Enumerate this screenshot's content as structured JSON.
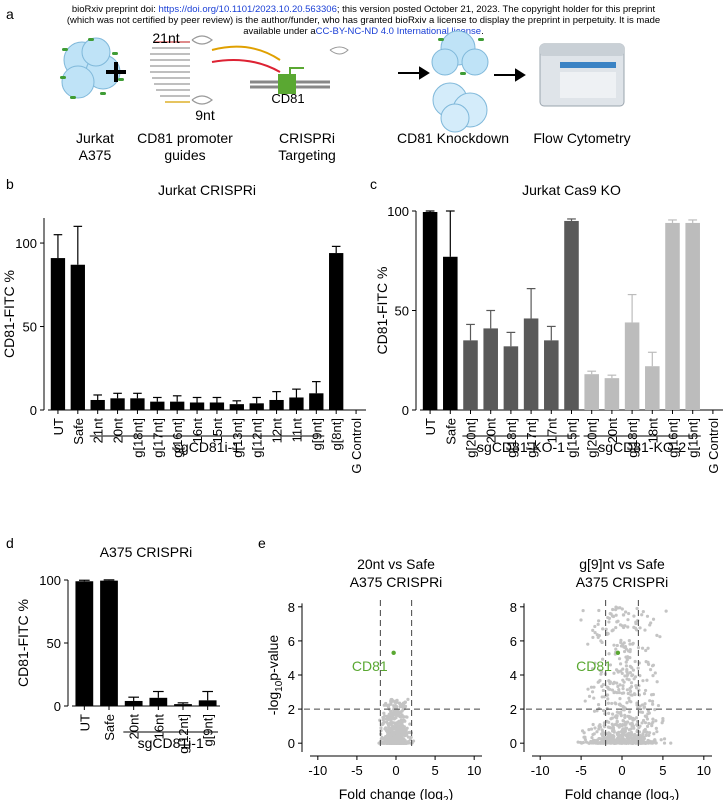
{
  "header": {
    "line1_pre": "bioRxiv preprint doi: ",
    "doi": "https://doi.org/10.1101/2023.10.20.563306",
    "line1_post": "; this version posted October 21, 2023. The copyright holder for this preprint",
    "line2": "(which was not certified by peer review) is the author/funder, who has granted bioRxiv a license to display the preprint in perpetuity. It is made",
    "line3_pre": "available under a",
    "license": "CC-BY-NC-ND 4.0 International license",
    "line3_post": "."
  },
  "panel_labels": {
    "a": "a",
    "b": "b",
    "c": "c",
    "d": "d",
    "e": "e"
  },
  "schematic": {
    "cells_l1": "Jurkat",
    "cells_l2": "A375",
    "nt21": "21nt",
    "nt9": "9nt",
    "guides_l1": "CD81 promoter",
    "guides_l2": "guides",
    "gene": "CD81",
    "crispri_l1": "CRISPRi",
    "crispri_l2": "Targeting",
    "knockdown": "CD81 Knockdown",
    "flow": "Flow Cytometry",
    "plus": "+"
  },
  "chart_data": [
    {
      "id": "b",
      "type": "bar",
      "title": "Jurkat CRISPRi",
      "ylabel": "CD81-FITC %",
      "ylim": [
        0,
        115
      ],
      "yticks": [
        0,
        50,
        100
      ],
      "categories": [
        "UT",
        "Safe",
        "21nt",
        "20nt",
        "g[18nt]",
        "g[17nt]",
        "g[16nt]",
        "16nt",
        "15nt",
        "g[13nt]",
        "g[12nt]",
        "12nt",
        "11nt",
        "g[9nt]",
        "g[8nt]",
        "IgG Control"
      ],
      "values": [
        91,
        87,
        6,
        7,
        7,
        5,
        5,
        4.5,
        4.5,
        3.5,
        4,
        6,
        7.5,
        10,
        94,
        0
      ],
      "errors": [
        14,
        23,
        3,
        3,
        3,
        2.5,
        3.5,
        3,
        3,
        2,
        3.5,
        5,
        5,
        7,
        4,
        0
      ],
      "colors": [
        "#000",
        "#000",
        "#000",
        "#000",
        "#000",
        "#000",
        "#000",
        "#000",
        "#000",
        "#000",
        "#000",
        "#000",
        "#000",
        "#000",
        "#000",
        "#000"
      ],
      "groups": [
        {
          "label": "sgCD81i-1",
          "from": 2,
          "to": 13
        }
      ]
    },
    {
      "id": "c",
      "type": "bar",
      "title": "Jurkat Cas9 KO",
      "ylabel": "CD81-FITC %",
      "ylim": [
        0,
        100
      ],
      "yticks": [
        0,
        50,
        100
      ],
      "categories": [
        "UT",
        "Safe",
        "g[20nt]",
        "20nt",
        "g[18nt]",
        "g[17nt]",
        "17nt",
        "g[15nt]",
        "g[20nt]",
        "20nt",
        "g[18nt]",
        "18nt",
        "g[16nt]",
        "g[15nt]",
        "IgG Control"
      ],
      "values": [
        99.5,
        77,
        35,
        41,
        32,
        46,
        35,
        95,
        18,
        16,
        44,
        22,
        94,
        94,
        0
      ],
      "errors": [
        0.5,
        23,
        8,
        9,
        7,
        15,
        7,
        1,
        1.5,
        1.5,
        14,
        7,
        1.5,
        1.5,
        0
      ],
      "colors": [
        "#000",
        "#000",
        "#595959",
        "#595959",
        "#595959",
        "#595959",
        "#595959",
        "#595959",
        "#bcbcbc",
        "#bcbcbc",
        "#bcbcbc",
        "#bcbcbc",
        "#bcbcbc",
        "#bcbcbc",
        "#000"
      ],
      "groups": [
        {
          "label": "sgCD81-KO-1",
          "from": 2,
          "to": 7
        },
        {
          "label": "sgCD81-KO-2",
          "from": 8,
          "to": 13
        }
      ]
    },
    {
      "id": "d",
      "type": "bar",
      "title": "A375 CRISPRi",
      "ylabel": "CD81-FITC %",
      "ylim": [
        0,
        100
      ],
      "yticks": [
        0,
        50,
        100
      ],
      "categories": [
        "UT",
        "Safe",
        "20nt",
        "16nt",
        "g[12nt]",
        "g[9nt]"
      ],
      "values": [
        99,
        99.5,
        4,
        6.5,
        1.5,
        4.5
      ],
      "errors": [
        0.8,
        0.6,
        3,
        5,
        1,
        7
      ],
      "colors": [
        "#000",
        "#000",
        "#000",
        "#000",
        "#000",
        "#000"
      ],
      "groups": [
        {
          "label": "sgCD81i-1",
          "from": 2,
          "to": 5
        }
      ]
    },
    {
      "id": "e1",
      "type": "scatter",
      "title_l1": "20nt vs Safe",
      "title_l2": "A375 CRISPRi",
      "xlabel": "Fold change (log2)",
      "ylabel": "-log10p-value",
      "xlim": [
        -11,
        11
      ],
      "ylim": [
        -0.4,
        8.4
      ],
      "xticks": [
        -10,
        -5,
        0,
        5,
        10
      ],
      "yticks": [
        0,
        2,
        4,
        6,
        8
      ],
      "thresholds": {
        "x": [
          -2,
          2
        ],
        "y": 2
      },
      "highlight": {
        "label": "CD81",
        "x": -0.3,
        "y": 5.3
      },
      "background_points": "many grey points clustered at low p-value"
    },
    {
      "id": "e2",
      "type": "scatter",
      "title_l1": "g[9]nt vs Safe",
      "title_l2": "A375 CRISPRi",
      "xlabel": "Fold change (log2)",
      "ylabel": "",
      "xlim": [
        -11,
        11
      ],
      "ylim": [
        -0.4,
        8.4
      ],
      "xticks": [
        -10,
        -5,
        0,
        5,
        10
      ],
      "yticks": [
        0,
        2,
        4,
        6,
        8
      ],
      "thresholds": {
        "x": [
          -2,
          2
        ],
        "y": 2
      },
      "highlight": {
        "label": "CD81",
        "x": -0.5,
        "y": 5.3
      },
      "background_points": "many grey points spread widely"
    }
  ],
  "colors": {
    "accent_green": "#5aa832",
    "grey_points": "#c4c4c4",
    "link_blue": "#1a3fd6"
  }
}
